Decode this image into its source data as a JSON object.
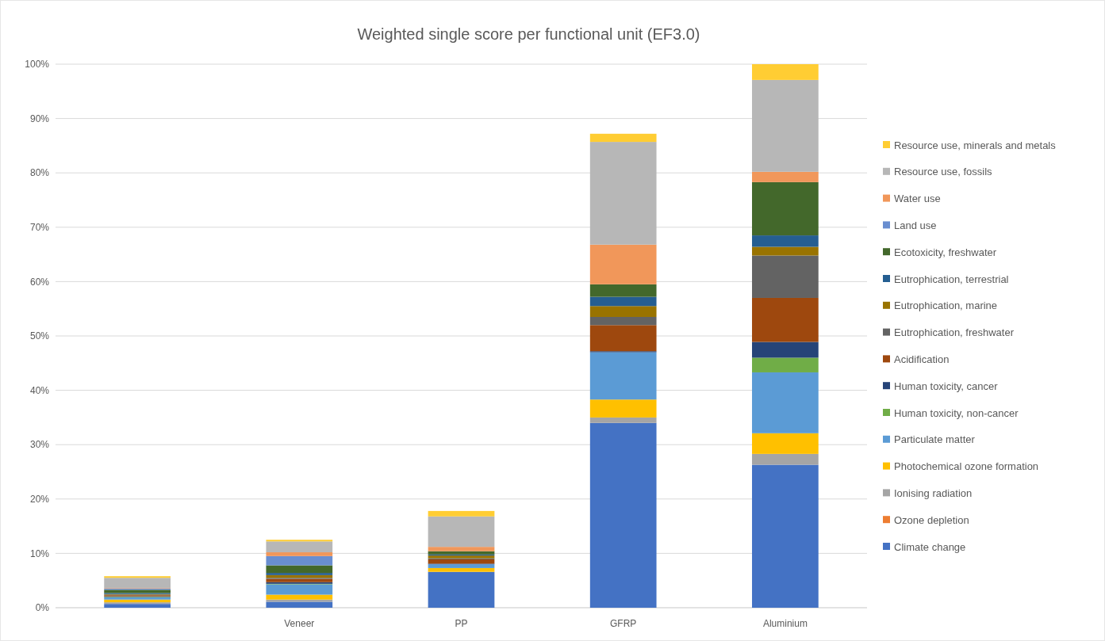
{
  "chart_data": {
    "type": "bar",
    "stacked": true,
    "title": "Weighted single score per functional unit (EF3.0)",
    "categories": [
      null,
      "Veneer",
      "PP",
      "GFRP",
      "Aluminium"
    ],
    "ylim": [
      0,
      100
    ],
    "yticks": [
      {
        "value": 0,
        "label": "0%"
      },
      {
        "value": 10,
        "label": "10%"
      },
      {
        "value": 20,
        "label": "20%"
      },
      {
        "value": 30,
        "label": "30%"
      },
      {
        "value": 40,
        "label": "40%"
      },
      {
        "value": 50,
        "label": "50%"
      },
      {
        "value": 60,
        "label": "60%"
      },
      {
        "value": 70,
        "label": "70%"
      },
      {
        "value": 80,
        "label": "80%"
      },
      {
        "value": 90,
        "label": "90%"
      },
      {
        "value": 100,
        "label": "100%"
      }
    ],
    "grid": "y",
    "legend": "right",
    "series": [
      {
        "name": "Climate change",
        "color": "#4472c4",
        "values": [
          0.7,
          1.1,
          6.6,
          34,
          26.3
        ]
      },
      {
        "name": "Ozone depletion",
        "color": "#ed7d31",
        "values": [
          0,
          0,
          0,
          0,
          0
        ]
      },
      {
        "name": "Ionising radiation",
        "color": "#a5a5a5",
        "values": [
          0.3,
          0.4,
          null,
          1.0,
          2.0
        ]
      },
      {
        "name": "Photochemical ozone formation",
        "color": "#ffc000",
        "values": [
          0.5,
          0.9,
          0.7,
          3.3,
          3.8
        ]
      },
      {
        "name": "Particulate matter",
        "color": "#5b9bd5",
        "values": [
          0.4,
          1.9,
          0.7,
          8.7,
          11.2
        ]
      },
      {
        "name": "Human toxicity, non-cancer",
        "color": "#70ad47",
        "values": [
          0.1,
          0.1,
          0,
          0,
          2.7
        ]
      },
      {
        "name": "Human toxicity, cancer",
        "color": "#264478",
        "values": [
          0.1,
          0.3,
          0.1,
          0.2,
          2.9
        ]
      },
      {
        "name": "Acidification",
        "color": "#9e480e",
        "values": [
          0.2,
          0.6,
          0.8,
          4.8,
          8.1
        ]
      },
      {
        "name": "Eutrophication, freshwater",
        "color": "#636363",
        "values": [
          0.1,
          0.2,
          0.2,
          1.5,
          7.8
        ]
      },
      {
        "name": "Eutrophication, marine",
        "color": "#997300",
        "values": [
          0.1,
          0.5,
          0.5,
          2.0,
          1.6
        ]
      },
      {
        "name": "Eutrophication, terrestrial",
        "color": "#255e91",
        "values": [
          0.2,
          0.4,
          0.2,
          1.7,
          2.1
        ]
      },
      {
        "name": "Ecotoxicity, freshwater",
        "color": "#43682b",
        "values": [
          0.6,
          1.4,
          0.6,
          2.3,
          9.8
        ]
      },
      {
        "name": "Land use",
        "color": "#698ed0",
        "values": [
          0.2,
          1.7,
          null,
          0,
          0
        ]
      },
      {
        "name": "Water use",
        "color": "#f1975a",
        "values": [
          0.1,
          0.7,
          0.8,
          7.3,
          1.9
        ]
      },
      {
        "name": "Resource use, fossils",
        "color": "#b7b7b7",
        "values": [
          1.9,
          2.0,
          5.6,
          18.9,
          16.9
        ]
      },
      {
        "name": "Resource use, minerals and metals",
        "color": "#ffcd33",
        "values": [
          0.3,
          0.3,
          1.0,
          1.5,
          2.9
        ]
      }
    ]
  }
}
